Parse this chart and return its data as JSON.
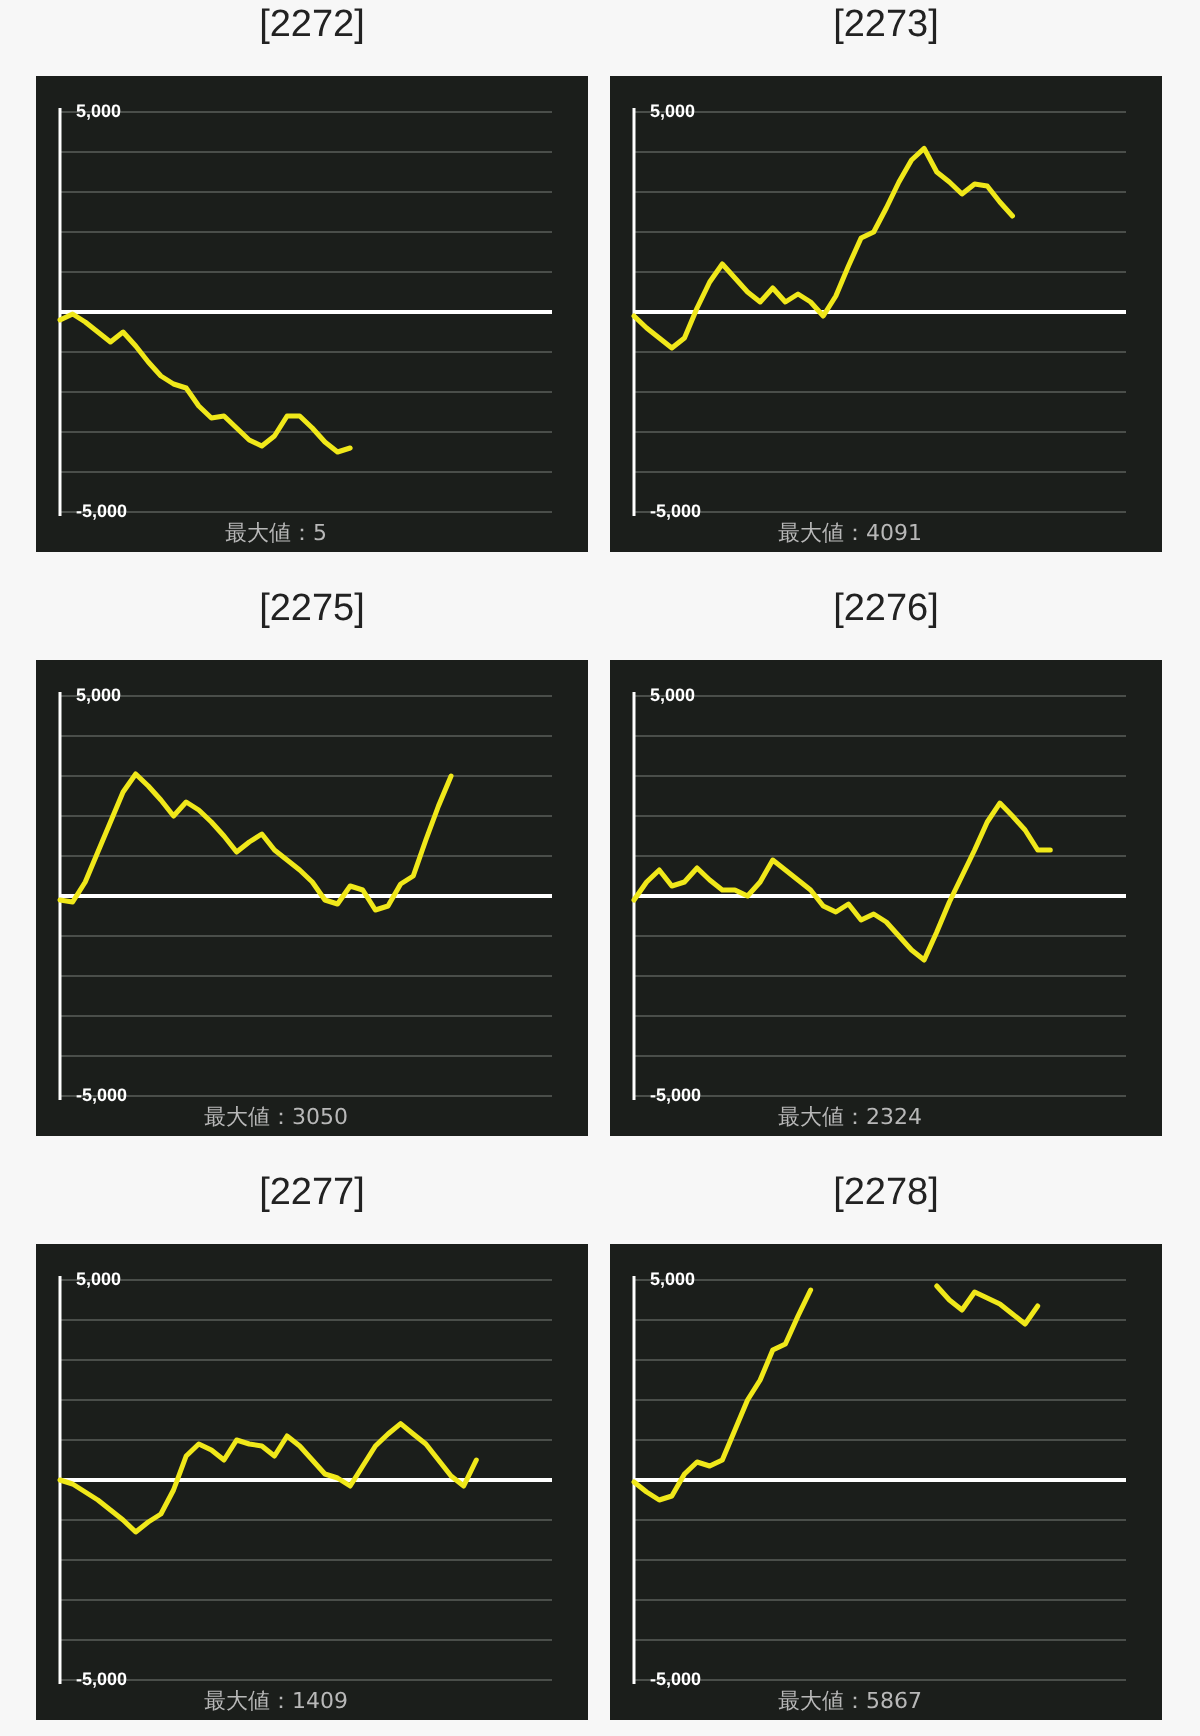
{
  "chart_data": [
    {
      "type": "line",
      "title": "[2272]",
      "categories": [
        null,
        null,
        null,
        null,
        null,
        null,
        null,
        null,
        null,
        null,
        null,
        null,
        null,
        null,
        null,
        null,
        null,
        null,
        null,
        null,
        null,
        null,
        null,
        null,
        null,
        null,
        null,
        null,
        null,
        null,
        null,
        null,
        null,
        null,
        null,
        null,
        null,
        null,
        null,
        null
      ],
      "series": [
        {
          "color": "#f0e81a",
          "values": [
            -200,
            -50,
            -250,
            -500,
            -750,
            -500,
            -850,
            -1250,
            -1600,
            -1800,
            -1900,
            -2350,
            -2650,
            -2600,
            -2900,
            -3200,
            -3350,
            -3100,
            -2600,
            -2600,
            -2900,
            -3250,
            -3500,
            -3400,
            null,
            null,
            null,
            null,
            null,
            null,
            null,
            null,
            null,
            null,
            null,
            null,
            null,
            null,
            null,
            null
          ]
        }
      ],
      "ylim": [
        -5000,
        5000
      ],
      "yticks": [
        {
          "value": -5000,
          "label": "-5,000"
        },
        {
          "value": -4000,
          "label": null
        },
        {
          "value": -3000,
          "label": null
        },
        {
          "value": -2000,
          "label": null
        },
        {
          "value": -1000,
          "label": null
        },
        {
          "value": 1000,
          "label": null
        },
        {
          "value": 2000,
          "label": null
        },
        {
          "value": 3000,
          "label": null
        },
        {
          "value": 4000,
          "label": null
        },
        {
          "value": 5000,
          "label": "5,000"
        }
      ],
      "grid": "y",
      "ref_lines": [
        {
          "axis": "y",
          "value": 0,
          "color": "#ffffff"
        }
      ],
      "annotations": [
        "最大値：5"
      ]
    },
    {
      "type": "line",
      "title": "[2273]",
      "categories": [
        null,
        null,
        null,
        null,
        null,
        null,
        null,
        null,
        null,
        null,
        null,
        null,
        null,
        null,
        null,
        null,
        null,
        null,
        null,
        null,
        null,
        null,
        null,
        null,
        null,
        null,
        null,
        null,
        null,
        null,
        null,
        null,
        null,
        null,
        null,
        null,
        null,
        null,
        null,
        null
      ],
      "series": [
        {
          "color": "#f0e81a",
          "values": [
            -100,
            -400,
            -650,
            -900,
            -650,
            100,
            750,
            1200,
            850,
            500,
            250,
            600,
            250,
            450,
            250,
            -100,
            400,
            1150,
            1850,
            2000,
            2600,
            3250,
            3800,
            4091,
            3500,
            3250,
            2950,
            3200,
            3150,
            2750,
            2400,
            null,
            null,
            null,
            null,
            null,
            null,
            null,
            null,
            null
          ]
        }
      ],
      "ylim": [
        -5000,
        5000
      ],
      "yticks": [
        {
          "value": -5000,
          "label": "-5,000"
        },
        {
          "value": -4000,
          "label": null
        },
        {
          "value": -3000,
          "label": null
        },
        {
          "value": -2000,
          "label": null
        },
        {
          "value": -1000,
          "label": null
        },
        {
          "value": 1000,
          "label": null
        },
        {
          "value": 2000,
          "label": null
        },
        {
          "value": 3000,
          "label": null
        },
        {
          "value": 4000,
          "label": null
        },
        {
          "value": 5000,
          "label": "5,000"
        }
      ],
      "grid": "y",
      "ref_lines": [
        {
          "axis": "y",
          "value": 0,
          "color": "#ffffff"
        }
      ],
      "annotations": [
        "最大値：4091"
      ]
    },
    {
      "type": "line",
      "title": "[2275]",
      "categories": [
        null,
        null,
        null,
        null,
        null,
        null,
        null,
        null,
        null,
        null,
        null,
        null,
        null,
        null,
        null,
        null,
        null,
        null,
        null,
        null,
        null,
        null,
        null,
        null,
        null,
        null,
        null,
        null,
        null,
        null,
        null,
        null,
        null,
        null,
        null,
        null,
        null,
        null,
        null,
        null
      ],
      "series": [
        {
          "color": "#f0e81a",
          "values": [
            -100,
            -150,
            350,
            1100,
            1850,
            2600,
            3050,
            2750,
            2400,
            2000,
            2350,
            2150,
            1850,
            1500,
            1100,
            1350,
            1550,
            1150,
            900,
            650,
            350,
            -100,
            -200,
            250,
            150,
            -350,
            -250,
            300,
            500,
            1400,
            2250,
            3000,
            null,
            null,
            null,
            null,
            null,
            null,
            null,
            null
          ]
        }
      ],
      "ylim": [
        -5000,
        5000
      ],
      "yticks": [
        {
          "value": -5000,
          "label": "-5,000"
        },
        {
          "value": -4000,
          "label": null
        },
        {
          "value": -3000,
          "label": null
        },
        {
          "value": -2000,
          "label": null
        },
        {
          "value": -1000,
          "label": null
        },
        {
          "value": 1000,
          "label": null
        },
        {
          "value": 2000,
          "label": null
        },
        {
          "value": 3000,
          "label": null
        },
        {
          "value": 4000,
          "label": null
        },
        {
          "value": 5000,
          "label": "5,000"
        }
      ],
      "grid": "y",
      "ref_lines": [
        {
          "axis": "y",
          "value": 0,
          "color": "#ffffff"
        }
      ],
      "annotations": [
        "最大値：3050"
      ]
    },
    {
      "type": "line",
      "title": "[2276]",
      "categories": [
        null,
        null,
        null,
        null,
        null,
        null,
        null,
        null,
        null,
        null,
        null,
        null,
        null,
        null,
        null,
        null,
        null,
        null,
        null,
        null,
        null,
        null,
        null,
        null,
        null,
        null,
        null,
        null,
        null,
        null,
        null,
        null,
        null,
        null,
        null,
        null,
        null,
        null,
        null,
        null
      ],
      "series": [
        {
          "color": "#f0e81a",
          "values": [
            -100,
            350,
            650,
            250,
            350,
            700,
            400,
            150,
            150,
            0,
            350,
            900,
            650,
            400,
            150,
            -250,
            -400,
            -200,
            -600,
            -450,
            -650,
            -1000,
            -1350,
            -1600,
            -900,
            -150,
            500,
            1150,
            1850,
            2324,
            2000,
            1650,
            1150,
            1150,
            null,
            null,
            null,
            null,
            null,
            null
          ]
        }
      ],
      "ylim": [
        -5000,
        5000
      ],
      "yticks": [
        {
          "value": -5000,
          "label": "-5,000"
        },
        {
          "value": -4000,
          "label": null
        },
        {
          "value": -3000,
          "label": null
        },
        {
          "value": -2000,
          "label": null
        },
        {
          "value": -1000,
          "label": null
        },
        {
          "value": 1000,
          "label": null
        },
        {
          "value": 2000,
          "label": null
        },
        {
          "value": 3000,
          "label": null
        },
        {
          "value": 4000,
          "label": null
        },
        {
          "value": 5000,
          "label": "5,000"
        }
      ],
      "grid": "y",
      "ref_lines": [
        {
          "axis": "y",
          "value": 0,
          "color": "#ffffff"
        }
      ],
      "annotations": [
        "最大値：2324"
      ]
    },
    {
      "type": "line",
      "title": "[2277]",
      "categories": [
        null,
        null,
        null,
        null,
        null,
        null,
        null,
        null,
        null,
        null,
        null,
        null,
        null,
        null,
        null,
        null,
        null,
        null,
        null,
        null,
        null,
        null,
        null,
        null,
        null,
        null,
        null,
        null,
        null,
        null,
        null,
        null,
        null,
        null,
        null,
        null,
        null,
        null,
        null,
        null
      ],
      "series": [
        {
          "color": "#f0e81a",
          "values": [
            0,
            -100,
            -300,
            -500,
            -750,
            -1000,
            -1300,
            -1050,
            -850,
            -250,
            600,
            900,
            750,
            500,
            1000,
            900,
            850,
            600,
            1100,
            850,
            500,
            150,
            50,
            -150,
            350,
            850,
            1150,
            1409,
            1150,
            900,
            500,
            100,
            -150,
            500,
            null,
            null,
            null,
            null,
            null,
            null
          ]
        }
      ],
      "ylim": [
        -5000,
        5000
      ],
      "yticks": [
        {
          "value": -5000,
          "label": "-5,000"
        },
        {
          "value": -4000,
          "label": null
        },
        {
          "value": -3000,
          "label": null
        },
        {
          "value": -2000,
          "label": null
        },
        {
          "value": -1000,
          "label": null
        },
        {
          "value": 1000,
          "label": null
        },
        {
          "value": 2000,
          "label": null
        },
        {
          "value": 3000,
          "label": null
        },
        {
          "value": 4000,
          "label": null
        },
        {
          "value": 5000,
          "label": "5,000"
        }
      ],
      "grid": "y",
      "ref_lines": [
        {
          "axis": "y",
          "value": 0,
          "color": "#ffffff"
        }
      ],
      "annotations": [
        "最大値：1409"
      ]
    },
    {
      "type": "line",
      "title": "[2278]",
      "categories": [
        null,
        null,
        null,
        null,
        null,
        null,
        null,
        null,
        null,
        null,
        null,
        null,
        null,
        null,
        null,
        null,
        null,
        null,
        null,
        null,
        null,
        null,
        null,
        null,
        null,
        null,
        null,
        null,
        null,
        null,
        null,
        null,
        null,
        null,
        null,
        null,
        null,
        null,
        null,
        null
      ],
      "series": [
        {
          "color": "#f0e81a",
          "values": [
            -50,
            -300,
            -500,
            -400,
            150,
            450,
            350,
            500,
            1250,
            2000,
            2500,
            3250,
            3400,
            4100,
            4750,
            null,
            null,
            null,
            null,
            null,
            null,
            null,
            null,
            null,
            4850,
            4500,
            4250,
            4700,
            4550,
            4400,
            4150,
            3900,
            4350,
            null,
            null,
            null,
            null,
            null,
            null,
            null
          ]
        }
      ],
      "ylim": [
        -5000,
        5000
      ],
      "yticks": [
        {
          "value": -5000,
          "label": "-5,000"
        },
        {
          "value": -4000,
          "label": null
        },
        {
          "value": -3000,
          "label": null
        },
        {
          "value": -2000,
          "label": null
        },
        {
          "value": -1000,
          "label": null
        },
        {
          "value": 1000,
          "label": null
        },
        {
          "value": 2000,
          "label": null
        },
        {
          "value": 3000,
          "label": null
        },
        {
          "value": 4000,
          "label": null
        },
        {
          "value": 5000,
          "label": "5,000"
        }
      ],
      "grid": "y",
      "ref_lines": [
        {
          "axis": "y",
          "value": 0,
          "color": "#ffffff"
        }
      ],
      "annotations": [
        "最大値：5867"
      ]
    }
  ]
}
